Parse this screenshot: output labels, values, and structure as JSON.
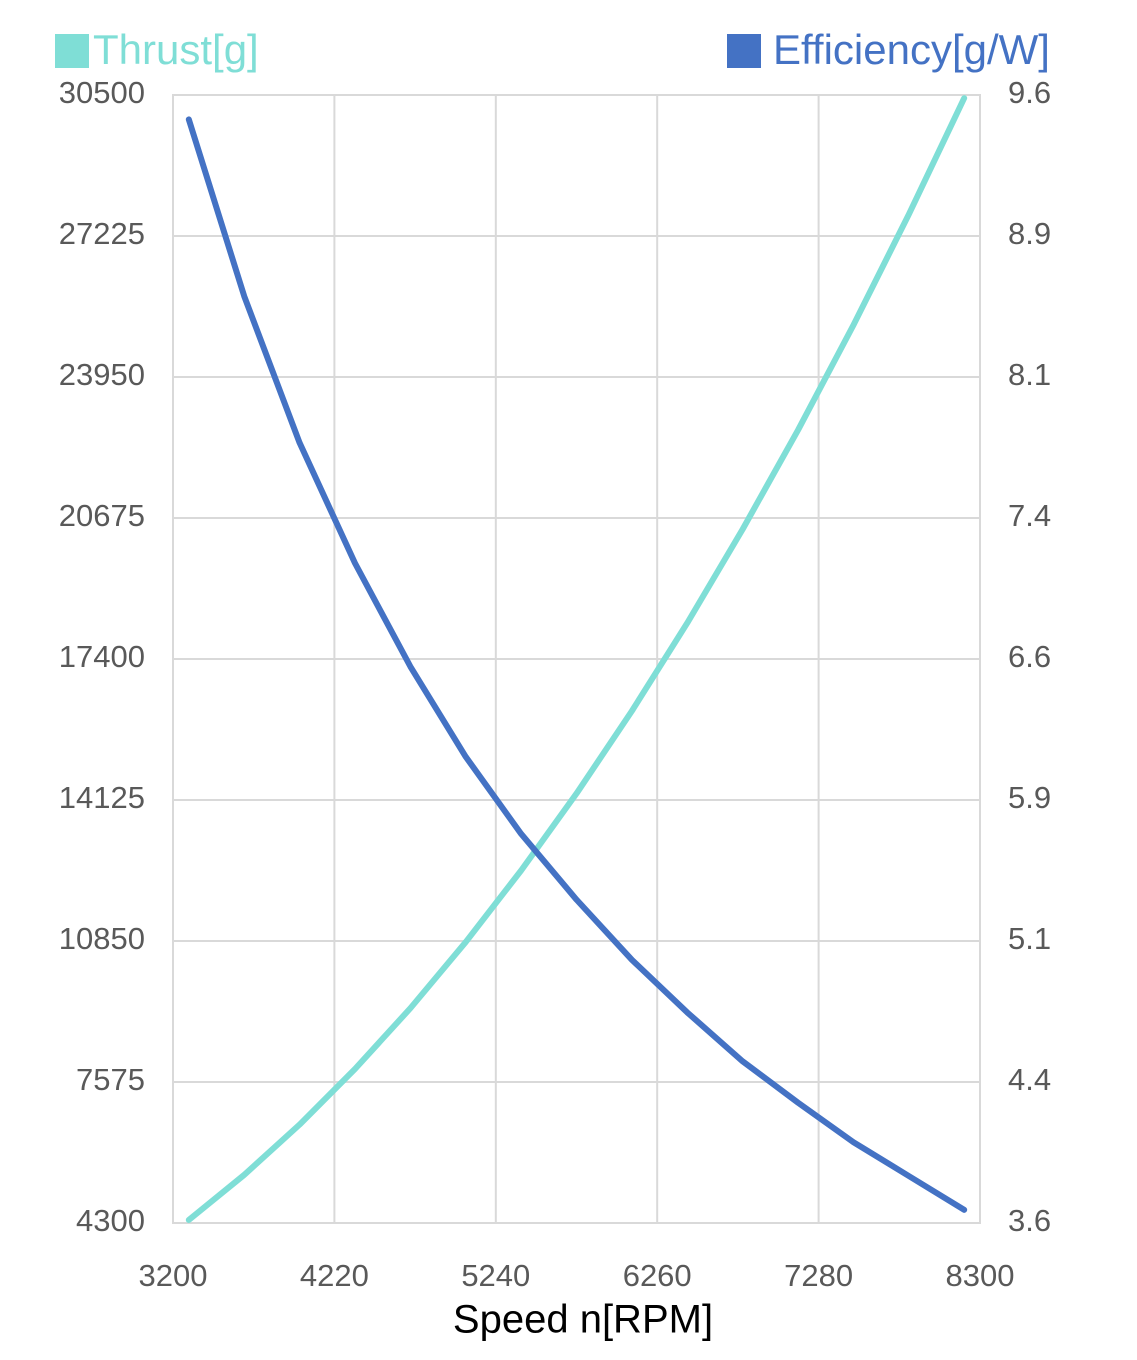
{
  "chart_data": {
    "type": "line",
    "x_label": "Speed n[RPM]",
    "x": [
      3300,
      3650,
      4000,
      4350,
      4700,
      5050,
      5400,
      5750,
      6100,
      6450,
      6800,
      7150,
      7500,
      7850,
      8200
    ],
    "series": [
      {
        "name": "Thrust[g]",
        "color": "#7fded6",
        "values": [
          4370,
          5418,
          6586,
          7876,
          9288,
          10825,
          12488,
          14275,
          16192,
          18237,
          20414,
          22718,
          25155,
          27726,
          30427
        ]
      },
      {
        "name": "Efficiency[g/W]",
        "color": "#4472c4",
        "axis": "y2",
        "values": [
          9.47,
          8.53,
          7.75,
          7.11,
          6.56,
          6.08,
          5.67,
          5.32,
          5.0,
          4.72,
          4.46,
          4.24,
          4.03,
          3.85,
          3.67
        ]
      }
    ],
    "xlim": [
      3200,
      8300
    ],
    "xticks": [
      3200,
      4220,
      5240,
      6260,
      7280,
      8300
    ],
    "ylim": [
      4300,
      30500
    ],
    "yticks": [
      4300,
      7575,
      10850,
      14125,
      17400,
      20675,
      23950,
      27225,
      30500
    ],
    "y2lim": [
      3.6,
      9.6
    ],
    "y2ticks": [
      3.6,
      {
        "value": 4.35,
        "label": "4.4"
      },
      5.1,
      {
        "value": 5.85,
        "label": "5.9"
      },
      6.6,
      {
        "value": 7.35,
        "label": "7.4"
      },
      8.1,
      {
        "value": 8.85,
        "label": "8.9"
      },
      9.6
    ],
    "grid": true
  }
}
